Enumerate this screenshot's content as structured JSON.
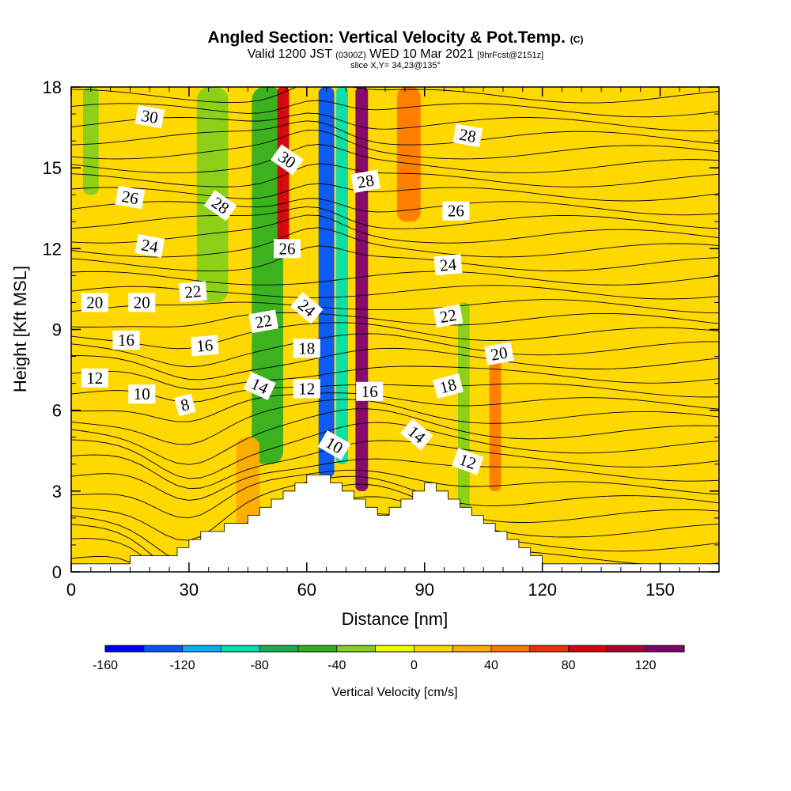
{
  "title": {
    "main": "Angled Section: Vertical Velocity & Pot.Temp.",
    "main_unit": "(C)",
    "valid_prefix": "Valid 1200 JST",
    "valid_utc": "(0300Z)",
    "valid_date": "WED 10 Mar 2021",
    "valid_fcst": "[9hrFcst@2151z]",
    "slice": "slice X,Y= 34,23@135°"
  },
  "chart_data": {
    "type": "heatmap",
    "xlabel": "Distance [nm]",
    "ylabel": "Height [Kft MSL]",
    "xlim": [
      0,
      165
    ],
    "ylim": [
      0,
      18
    ],
    "x_ticks": [
      "0",
      "30",
      "60",
      "90",
      "120",
      "150"
    ],
    "y_ticks": [
      "0",
      "3",
      "6",
      "9",
      "12",
      "15",
      "18"
    ],
    "colorbar": {
      "label": "Vertical Velocity [cm/s]",
      "range": [
        -160,
        140
      ],
      "step": 20,
      "tick_labels": [
        "-160",
        "-120",
        "-80",
        "-40",
        "0",
        "40",
        "80",
        "120"
      ],
      "colors": [
        "#0000f0",
        "#0055ff",
        "#00b0ff",
        "#00e0b0",
        "#10b050",
        "#30b020",
        "#88d018",
        "#f0ff00",
        "#ffd800",
        "#ffac00",
        "#ff7a00",
        "#f03000",
        "#d80010",
        "#b00030",
        "#800070"
      ]
    },
    "terrain_heights_kft": [
      0.3,
      0.3,
      0.3,
      0.3,
      0.3,
      0.6,
      0.6,
      0.6,
      0.6,
      0.9,
      1.2,
      1.5,
      1.5,
      1.8,
      1.8,
      2.1,
      2.4,
      2.7,
      3.0,
      3.3,
      3.6,
      3.6,
      3.3,
      3.0,
      2.7,
      2.4,
      2.1,
      2.4,
      2.7,
      3.0,
      3.3,
      3.0,
      2.7,
      2.4,
      2.1,
      1.8,
      1.5,
      1.2,
      0.9,
      0.6,
      0.3,
      0.3,
      0.3,
      0.3,
      0.3,
      0.3,
      0.3,
      0.3,
      0.3,
      0.3,
      0.3,
      0.3,
      0.3,
      0.3,
      0.3,
      0.3
    ],
    "velocity_bands": [
      {
        "x": 65,
        "kft": [
          3.5,
          18
        ],
        "w": 4,
        "value": -130
      },
      {
        "x": 69,
        "kft": [
          4,
          18
        ],
        "w": 3,
        "value": -90
      },
      {
        "x": 50,
        "kft": [
          4,
          18
        ],
        "w": 8,
        "value": -50
      },
      {
        "x": 74,
        "kft": [
          3,
          18
        ],
        "w": 3.2,
        "value": 120
      },
      {
        "x": 54,
        "kft": [
          12,
          18
        ],
        "w": 3,
        "value": 90
      },
      {
        "x": 86,
        "kft": [
          13,
          18
        ],
        "w": 6,
        "value": 40
      },
      {
        "x": 100,
        "kft": [
          2,
          10
        ],
        "w": 3,
        "value": -40
      },
      {
        "x": 36,
        "kft": [
          10,
          18
        ],
        "w": 8,
        "value": -40
      },
      {
        "x": 5,
        "kft": [
          14,
          18
        ],
        "w": 4,
        "value": -30
      },
      {
        "x": 24,
        "kft": [
          0,
          6
        ],
        "w": 12,
        "value": 15
      },
      {
        "x": 45,
        "kft": [
          0,
          5
        ],
        "w": 6,
        "value": 25
      },
      {
        "x": 108,
        "kft": [
          3,
          8
        ],
        "w": 3,
        "value": 40
      },
      {
        "x": 150,
        "kft": [
          0,
          3
        ],
        "w": 10,
        "value": 10
      },
      {
        "x": 158,
        "kft": [
          6,
          9
        ],
        "w": 6,
        "value": 10
      }
    ],
    "theta_contour_labels": [
      {
        "text": "30",
        "x": 20,
        "kft": 16.9,
        "angle": 10
      },
      {
        "text": "28",
        "x": 101,
        "kft": 16.2,
        "angle": 10
      },
      {
        "text": "30",
        "x": 55,
        "kft": 15.3,
        "angle": 35
      },
      {
        "text": "28",
        "x": 75,
        "kft": 14.5,
        "angle": -10
      },
      {
        "text": "26",
        "x": 15,
        "kft": 13.9,
        "angle": 10
      },
      {
        "text": "28",
        "x": 38,
        "kft": 13.6,
        "angle": 35
      },
      {
        "text": "26",
        "x": 98,
        "kft": 13.4,
        "angle": 0
      },
      {
        "text": "24",
        "x": 20,
        "kft": 12.1,
        "angle": 10
      },
      {
        "text": "26",
        "x": 55,
        "kft": 12.0,
        "angle": 0
      },
      {
        "text": "24",
        "x": 96,
        "kft": 11.4,
        "angle": -5
      },
      {
        "text": "22",
        "x": 31,
        "kft": 10.4,
        "angle": -5
      },
      {
        "text": "24",
        "x": 60,
        "kft": 9.8,
        "angle": 40
      },
      {
        "text": "20",
        "x": 6,
        "kft": 10.0,
        "angle": 0
      },
      {
        "text": "20",
        "x": 18,
        "kft": 10.0,
        "angle": 0
      },
      {
        "text": "22",
        "x": 49,
        "kft": 9.3,
        "angle": -10
      },
      {
        "text": "22",
        "x": 96,
        "kft": 9.5,
        "angle": -10
      },
      {
        "text": "16",
        "x": 14,
        "kft": 8.6,
        "angle": 0
      },
      {
        "text": "16",
        "x": 34,
        "kft": 8.4,
        "angle": -5
      },
      {
        "text": "18",
        "x": 60,
        "kft": 8.3,
        "angle": 0
      },
      {
        "text": "20",
        "x": 109,
        "kft": 8.1,
        "angle": -10
      },
      {
        "text": "12",
        "x": 6,
        "kft": 7.2,
        "angle": 0
      },
      {
        "text": "14",
        "x": 48,
        "kft": 6.9,
        "angle": 25
      },
      {
        "text": "12",
        "x": 60,
        "kft": 6.8,
        "angle": 0
      },
      {
        "text": "16",
        "x": 76,
        "kft": 6.7,
        "angle": 0
      },
      {
        "text": "18",
        "x": 96,
        "kft": 6.9,
        "angle": -15
      },
      {
        "text": "10",
        "x": 18,
        "kft": 6.6,
        "angle": 0
      },
      {
        "text": "8",
        "x": 29,
        "kft": 6.2,
        "angle": -15
      },
      {
        "text": "14",
        "x": 88,
        "kft": 5.1,
        "angle": 40
      },
      {
        "text": "10",
        "x": 67,
        "kft": 4.7,
        "angle": 30
      },
      {
        "text": "12",
        "x": 101,
        "kft": 4.1,
        "angle": 20
      }
    ]
  }
}
